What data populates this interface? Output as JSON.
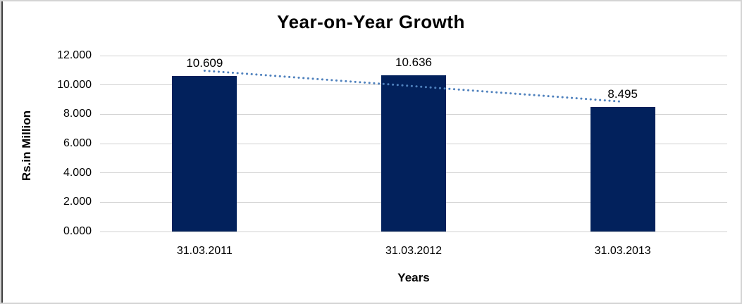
{
  "chart_data": {
    "type": "bar",
    "title": "Year-on-Year Growth",
    "xlabel": "Years",
    "ylabel": "Rs.in Million",
    "categories": [
      "31.03.2011",
      "31.03.2012",
      "31.03.2013"
    ],
    "values": [
      10.609,
      10.636,
      8.495
    ],
    "data_labels": [
      "10.609",
      "10.636",
      "8.495"
    ],
    "ylim": [
      0,
      12
    ],
    "yticks": [
      0,
      2,
      4,
      6,
      8,
      10,
      12
    ],
    "ytick_labels": [
      "0.000",
      "2.000",
      "4.000",
      "6.000",
      "8.000",
      "10.000",
      "12.000"
    ],
    "grid": true,
    "legend": "none",
    "bar_color": "#02215c",
    "gridline_color": "#d0d0d0",
    "trendline": {
      "type": "linear",
      "style": "dotted",
      "color": "#4f81bd"
    }
  }
}
